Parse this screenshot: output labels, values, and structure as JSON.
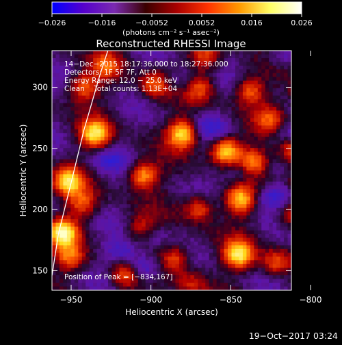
{
  "chart_data": {
    "type": "heatmap",
    "title": "Reconstructed RHESSI Image",
    "xlabel": "Heliocentric X (arcsec)",
    "ylabel": "Heliocentric Y (arcsec)",
    "xlim": [
      -962,
      -812
    ],
    "ylim": [
      134,
      330
    ],
    "xticks": [
      -950,
      -900,
      -850,
      -800
    ],
    "yticks": [
      150,
      200,
      250,
      300
    ],
    "colorbar": {
      "label": "(photons cm⁻² s⁻¹ asec⁻²)",
      "range": [
        -0.026,
        0.026
      ],
      "ticks": [
        "−0.026",
        "−0.016",
        "−0.0052",
        "0.0052",
        "0.016",
        "0.026"
      ],
      "colors": [
        "#0000ff",
        "#5500cc",
        "#7a2ab0",
        "#3a0000",
        "#aa0000",
        "#ff3300",
        "#ff9900",
        "#ffff66",
        "#ffffff"
      ]
    },
    "annotations": [
      "14−Dec−2015 18:17:36.000 to 18:27:36.000",
      "Detectors: 1F 5F 7F, Att 0",
      "Energy Range: 12.0 − 25.0 keV",
      "Clean    Total counts: 1.13E+04"
    ],
    "peak_text": "Position of Peak = [−834,167]",
    "hot_spots": [
      {
        "x": -955,
        "y": 181,
        "v": 1.0
      },
      {
        "x": -952,
        "y": 223,
        "v": 0.9
      },
      {
        "x": -951,
        "y": 161,
        "v": 0.55
      },
      {
        "x": -935,
        "y": 262,
        "v": 0.9
      },
      {
        "x": -942,
        "y": 300,
        "v": 0.6
      },
      {
        "x": -943,
        "y": 205,
        "v": 0.5
      },
      {
        "x": -905,
        "y": 228,
        "v": 0.75
      },
      {
        "x": -906,
        "y": 183,
        "v": 0.55
      },
      {
        "x": -916,
        "y": 147,
        "v": 0.55
      },
      {
        "x": -898,
        "y": 302,
        "v": 0.55
      },
      {
        "x": -880,
        "y": 262,
        "v": 0.9
      },
      {
        "x": -885,
        "y": 160,
        "v": 0.55
      },
      {
        "x": -870,
        "y": 201,
        "v": 0.55
      },
      {
        "x": -870,
        "y": 300,
        "v": 0.5
      },
      {
        "x": -853,
        "y": 248,
        "v": 0.95
      },
      {
        "x": -838,
        "y": 297,
        "v": 0.55
      },
      {
        "x": -844,
        "y": 208,
        "v": 0.8
      },
      {
        "x": -845,
        "y": 163,
        "v": 0.95
      },
      {
        "x": -836,
        "y": 239,
        "v": 0.65
      },
      {
        "x": -822,
        "y": 157,
        "v": 0.5
      },
      {
        "x": -811,
        "y": 248,
        "v": 0.6
      },
      {
        "x": -804,
        "y": 226,
        "v": 0.6
      },
      {
        "x": -803,
        "y": 296,
        "v": 0.7
      },
      {
        "x": -812,
        "y": 195,
        "v": 0.4
      },
      {
        "x": -825,
        "y": 274,
        "v": 0.45
      },
      {
        "x": -866,
        "y": 325,
        "v": 0.45
      },
      {
        "x": -928,
        "y": 318,
        "v": 0.45
      },
      {
        "x": -875,
        "y": 140,
        "v": 0.35
      }
    ],
    "cold_spots": [
      {
        "x": -905,
        "y": 152,
        "v": 0.9
      },
      {
        "x": -902,
        "y": 180,
        "v": 0.6
      },
      {
        "x": -918,
        "y": 165,
        "v": 0.6
      },
      {
        "x": -823,
        "y": 210,
        "v": 0.75
      },
      {
        "x": -927,
        "y": 240,
        "v": 0.55
      },
      {
        "x": -863,
        "y": 268,
        "v": 0.55
      },
      {
        "x": -845,
        "y": 230,
        "v": 0.5
      },
      {
        "x": -813,
        "y": 262,
        "v": 0.5
      },
      {
        "x": -880,
        "y": 305,
        "v": 0.5
      },
      {
        "x": -818,
        "y": 325,
        "v": 0.5
      }
    ],
    "limb_curve": [
      [
        -962,
        146
      ],
      [
        -958,
        180
      ],
      [
        -950,
        222
      ],
      [
        -942,
        265
      ],
      [
        -932,
        310
      ],
      [
        -927,
        330
      ]
    ]
  },
  "footer": {
    "date_text": "19−Oct−2017 03:24"
  }
}
